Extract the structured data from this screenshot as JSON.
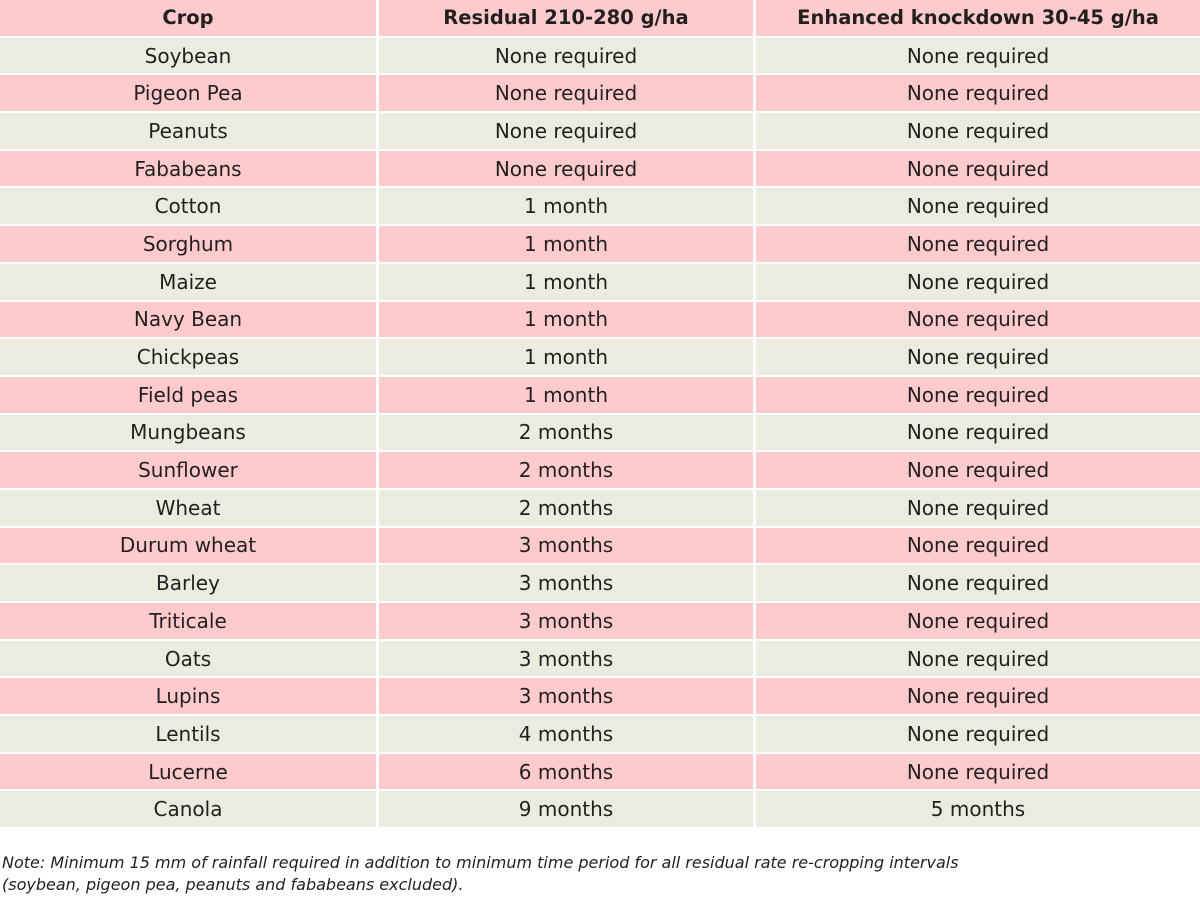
{
  "table": {
    "headers": [
      "Crop",
      "Residual 210-280 g/ha",
      "Enhanced knockdown 30-45 g/ha"
    ],
    "rows": [
      [
        "Soybean",
        "None required",
        "None required"
      ],
      [
        "Pigeon Pea",
        "None required",
        "None required"
      ],
      [
        "Peanuts",
        "None required",
        "None required"
      ],
      [
        "Fababeans",
        "None required",
        "None required"
      ],
      [
        "Cotton",
        "1 month",
        "None required"
      ],
      [
        "Sorghum",
        "1 month",
        "None required"
      ],
      [
        "Maize",
        "1 month",
        "None required"
      ],
      [
        "Navy Bean",
        "1 month",
        "None required"
      ],
      [
        "Chickpeas",
        "1 month",
        "None required"
      ],
      [
        "Field peas",
        "1 month",
        "None required"
      ],
      [
        "Mungbeans",
        "2 months",
        "None required"
      ],
      [
        "Sunflower",
        "2 months",
        "None required"
      ],
      [
        "Wheat",
        "2 months",
        "None required"
      ],
      [
        "Durum wheat",
        "3 months",
        "None required"
      ],
      [
        "Barley",
        "3 months",
        "None required"
      ],
      [
        "Triticale",
        "3 months",
        "None required"
      ],
      [
        "Oats",
        "3 months",
        "None required"
      ],
      [
        "Lupins",
        "3 months",
        "None required"
      ],
      [
        "Lentils",
        "4 months",
        "None required"
      ],
      [
        "Lucerne",
        "6 months",
        "None required"
      ],
      [
        "Canola",
        "9 months",
        "5 months"
      ]
    ]
  },
  "note": {
    "line1": "Note: Minimum 15 mm of rainfall required in addition to minimum time period for all residual rate re-cropping intervals",
    "line2": "(soybean, pigeon pea, peanuts and fababeans excluded)."
  },
  "colors": {
    "header_bg": "#fecbcd",
    "row_green": "#ebebe0",
    "row_pink": "#fecbcd"
  }
}
